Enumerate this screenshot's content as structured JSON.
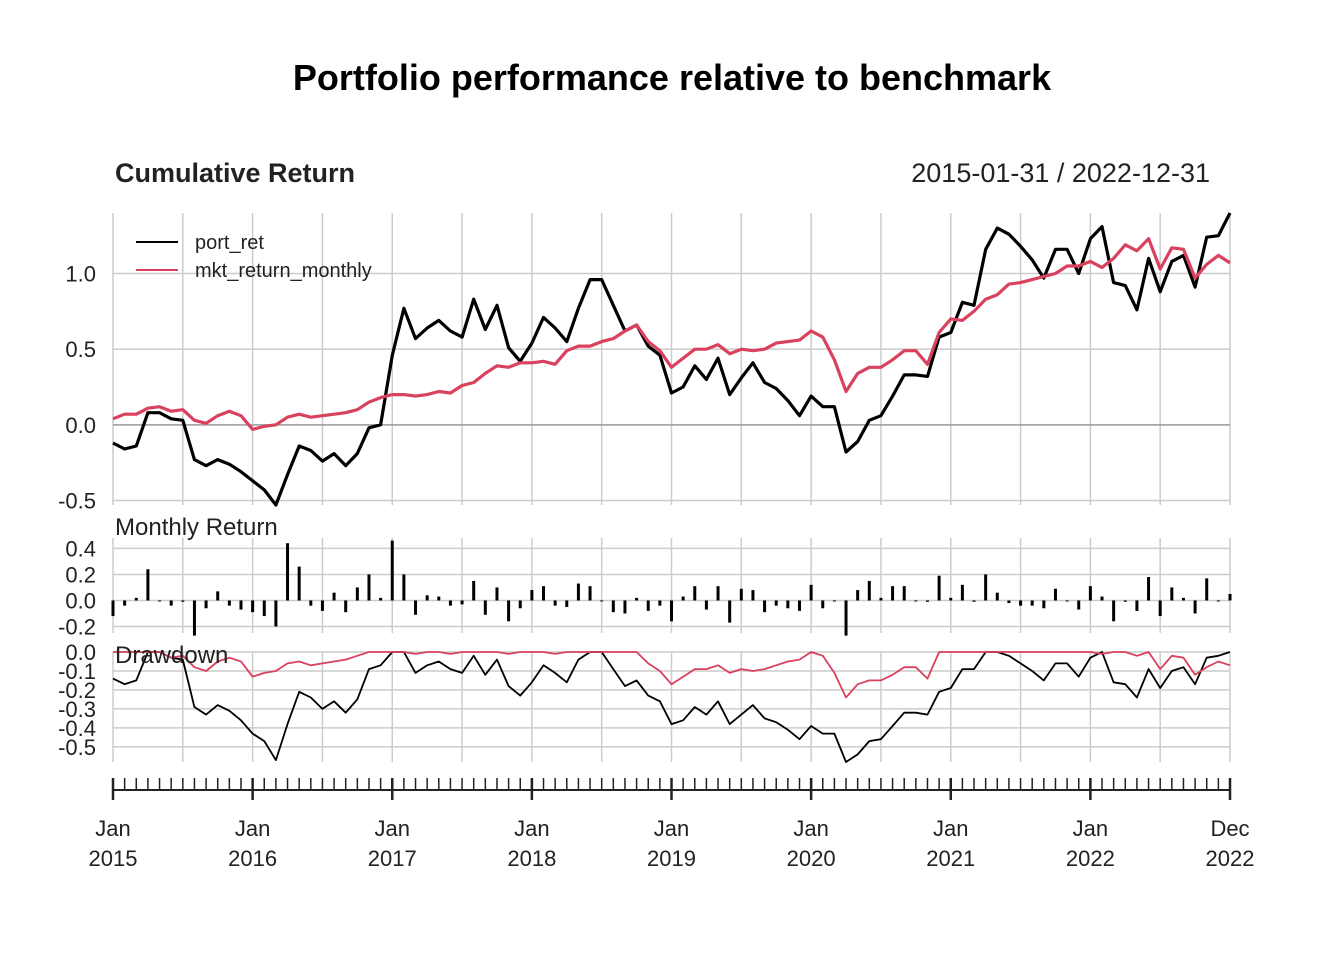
{
  "chart_data": {
    "type": "line",
    "title": "Portfolio performance relative to benchmark",
    "date_range": "2015-01-31 / 2022-12-31",
    "x_labels": [
      [
        "Jan",
        "2015"
      ],
      [
        "Jan",
        "2016"
      ],
      [
        "Jan",
        "2017"
      ],
      [
        "Jan",
        "2018"
      ],
      [
        "Jan",
        "2019"
      ],
      [
        "Jan",
        "2020"
      ],
      [
        "Jan",
        "2021"
      ],
      [
        "Jan",
        "2022"
      ],
      [
        "Dec",
        "2022"
      ]
    ],
    "panels": {
      "cumulative": {
        "title": "Cumulative Return",
        "yticks": [
          "-0.5",
          "0.0",
          "0.5",
          "1.0"
        ],
        "ylim": [
          -0.53,
          1.4
        ],
        "legend": [
          "port_ret",
          "mkt_return_monthly"
        ],
        "legend_position": "top-left"
      },
      "monthly": {
        "title": "Monthly Return",
        "yticks": [
          "-0.2",
          "0.0",
          "0.2",
          "0.4"
        ],
        "ylim": [
          -0.25,
          0.48
        ]
      },
      "drawdown": {
        "title": "Drawdown",
        "yticks": [
          "-0.5",
          "-0.4",
          "-0.3",
          "-0.2",
          "-0.1",
          "0.0"
        ],
        "ylim": [
          -0.58,
          0.0
        ]
      }
    },
    "series": [
      {
        "name": "port_ret",
        "color": "#000000",
        "cumulative": [
          -0.12,
          -0.16,
          -0.14,
          0.08,
          0.08,
          0.04,
          0.03,
          -0.23,
          -0.27,
          -0.23,
          -0.26,
          -0.31,
          -0.37,
          -0.43,
          -0.53,
          -0.33,
          -0.14,
          -0.17,
          -0.24,
          -0.19,
          -0.27,
          -0.19,
          -0.02,
          0.0,
          0.46,
          0.77,
          0.57,
          0.64,
          0.69,
          0.62,
          0.58,
          0.83,
          0.63,
          0.79,
          0.51,
          0.42,
          0.54,
          0.71,
          0.64,
          0.55,
          0.77,
          0.96,
          0.96,
          0.79,
          0.62,
          0.66,
          0.52,
          0.46,
          0.21,
          0.25,
          0.39,
          0.3,
          0.44,
          0.2,
          0.31,
          0.41,
          0.28,
          0.24,
          0.16,
          0.06,
          0.19,
          0.12,
          0.12,
          -0.18,
          -0.11,
          0.03,
          0.06,
          0.19,
          0.33,
          0.33,
          0.32,
          0.58,
          0.61,
          0.81,
          0.79,
          1.16,
          1.3,
          1.26,
          1.18,
          1.09,
          0.97,
          1.16,
          1.16,
          1.0,
          1.23,
          1.31,
          0.94,
          0.92,
          0.76,
          1.1,
          0.88,
          1.08,
          1.12,
          0.91,
          1.24,
          1.25,
          1.4
        ],
        "monthly": [
          -0.12,
          -0.04,
          0.02,
          0.24,
          0.0,
          -0.04,
          -0.01,
          -0.27,
          -0.06,
          0.07,
          -0.04,
          -0.07,
          -0.09,
          -0.12,
          -0.2,
          0.44,
          0.26,
          -0.04,
          -0.08,
          0.06,
          -0.09,
          0.1,
          0.2,
          0.02,
          0.46,
          0.2,
          -0.11,
          0.04,
          0.03,
          -0.04,
          -0.03,
          0.15,
          -0.11,
          0.1,
          -0.16,
          -0.06,
          0.08,
          0.11,
          -0.04,
          -0.05,
          0.13,
          0.11,
          0.0,
          -0.09,
          -0.1,
          0.02,
          -0.08,
          -0.04,
          -0.16,
          0.03,
          0.11,
          -0.07,
          0.11,
          -0.17,
          0.09,
          0.08,
          -0.09,
          -0.04,
          -0.06,
          -0.08,
          0.12,
          -0.06,
          0.0,
          -0.27,
          0.08,
          0.15,
          0.02,
          0.11,
          0.11,
          0.0,
          -0.01,
          0.19,
          0.02,
          0.12,
          -0.01,
          0.2,
          0.06,
          -0.02,
          -0.04,
          -0.04,
          -0.06,
          0.09,
          0.0,
          -0.07,
          0.11,
          0.03,
          -0.16,
          -0.01,
          -0.08,
          0.18,
          -0.12,
          0.1,
          0.02,
          -0.1,
          0.17,
          0.0,
          0.05
        ],
        "drawdown": [
          -0.14,
          -0.17,
          -0.15,
          0.0,
          0.0,
          -0.03,
          -0.04,
          -0.29,
          -0.33,
          -0.28,
          -0.31,
          -0.36,
          -0.43,
          -0.47,
          -0.57,
          -0.38,
          -0.21,
          -0.24,
          -0.3,
          -0.26,
          -0.32,
          -0.25,
          -0.09,
          -0.07,
          0.0,
          0.0,
          -0.11,
          -0.07,
          -0.05,
          -0.09,
          -0.11,
          -0.02,
          -0.12,
          -0.04,
          -0.18,
          -0.23,
          -0.16,
          -0.07,
          -0.11,
          -0.16,
          -0.04,
          0.0,
          0.0,
          -0.09,
          -0.18,
          -0.15,
          -0.23,
          -0.26,
          -0.38,
          -0.36,
          -0.29,
          -0.33,
          -0.26,
          -0.38,
          -0.33,
          -0.28,
          -0.35,
          -0.37,
          -0.41,
          -0.46,
          -0.39,
          -0.43,
          -0.43,
          -0.58,
          -0.54,
          -0.47,
          -0.46,
          -0.39,
          -0.32,
          -0.32,
          -0.33,
          -0.21,
          -0.19,
          -0.09,
          -0.09,
          0.0,
          0.0,
          -0.02,
          -0.06,
          -0.1,
          -0.15,
          -0.06,
          -0.06,
          -0.13,
          -0.03,
          0.0,
          -0.16,
          -0.17,
          -0.24,
          -0.09,
          -0.19,
          -0.1,
          -0.08,
          -0.17,
          -0.03,
          -0.02,
          0.0
        ]
      },
      {
        "name": "mkt_return_monthly",
        "color": "#D9415E",
        "cumulative": [
          0.04,
          0.07,
          0.07,
          0.11,
          0.12,
          0.09,
          0.1,
          0.03,
          0.01,
          0.06,
          0.09,
          0.06,
          -0.03,
          -0.01,
          0.0,
          0.05,
          0.07,
          0.05,
          0.06,
          0.07,
          0.08,
          0.1,
          0.15,
          0.18,
          0.2,
          0.2,
          0.19,
          0.2,
          0.22,
          0.21,
          0.26,
          0.28,
          0.34,
          0.39,
          0.38,
          0.41,
          0.41,
          0.42,
          0.4,
          0.49,
          0.52,
          0.52,
          0.55,
          0.57,
          0.62,
          0.66,
          0.55,
          0.49,
          0.38,
          0.44,
          0.5,
          0.5,
          0.53,
          0.47,
          0.5,
          0.49,
          0.5,
          0.54,
          0.55,
          0.56,
          0.62,
          0.58,
          0.43,
          0.22,
          0.34,
          0.38,
          0.38,
          0.43,
          0.49,
          0.49,
          0.4,
          0.61,
          0.7,
          0.69,
          0.75,
          0.83,
          0.86,
          0.93,
          0.94,
          0.96,
          0.98,
          1.0,
          1.05,
          1.05,
          1.08,
          1.04,
          1.1,
          1.19,
          1.15,
          1.23,
          1.03,
          1.17,
          1.16,
          0.97,
          1.06,
          1.12,
          1.07
        ],
        "drawdown": [
          0.0,
          0.0,
          0.0,
          0.0,
          0.0,
          -0.03,
          -0.02,
          -0.08,
          -0.1,
          -0.05,
          -0.03,
          -0.05,
          -0.13,
          -0.11,
          -0.1,
          -0.06,
          -0.05,
          -0.07,
          -0.06,
          -0.05,
          -0.04,
          -0.02,
          0.0,
          0.0,
          0.0,
          0.0,
          -0.01,
          0.0,
          0.0,
          -0.01,
          0.0,
          0.0,
          0.0,
          0.0,
          -0.01,
          0.0,
          0.0,
          0.0,
          -0.01,
          0.0,
          0.0,
          0.0,
          0.0,
          0.0,
          0.0,
          0.0,
          -0.06,
          -0.1,
          -0.17,
          -0.13,
          -0.09,
          -0.09,
          -0.07,
          -0.11,
          -0.09,
          -0.1,
          -0.09,
          -0.07,
          -0.05,
          -0.04,
          0.0,
          -0.02,
          -0.11,
          -0.24,
          -0.17,
          -0.15,
          -0.15,
          -0.12,
          -0.08,
          -0.08,
          -0.14,
          0.0,
          0.0,
          0.0,
          0.0,
          0.0,
          0.0,
          0.0,
          0.0,
          0.0,
          0.0,
          0.0,
          0.0,
          0.0,
          0.0,
          -0.01,
          0.0,
          0.0,
          -0.02,
          0.0,
          -0.09,
          -0.02,
          -0.03,
          -0.12,
          -0.08,
          -0.05,
          -0.07
        ]
      }
    ]
  }
}
